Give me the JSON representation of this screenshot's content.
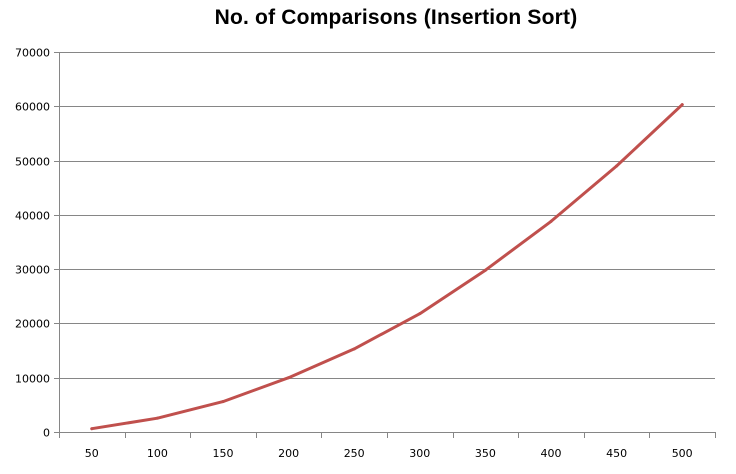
{
  "chart_data": {
    "type": "line",
    "title": "No. of Comparisons (Insertion Sort)",
    "xlabel": "",
    "ylabel": "",
    "categories": [
      "50",
      "100",
      "150",
      "200",
      "250",
      "300",
      "350",
      "400",
      "450",
      "500"
    ],
    "series": [
      {
        "values": [
          600,
          2550,
          5600,
          10000,
          15300,
          21800,
          29800,
          38800,
          49000,
          60300
        ]
      }
    ],
    "ylim": [
      0,
      70000
    ],
    "yticks": [
      "0",
      "10000",
      "20000",
      "30000",
      "40000",
      "50000",
      "60000",
      "70000"
    ],
    "grid": "horizontal",
    "legend": "none",
    "colors": {
      "line": "#c0504d",
      "grid": "#868686",
      "axis": "#868686"
    }
  }
}
